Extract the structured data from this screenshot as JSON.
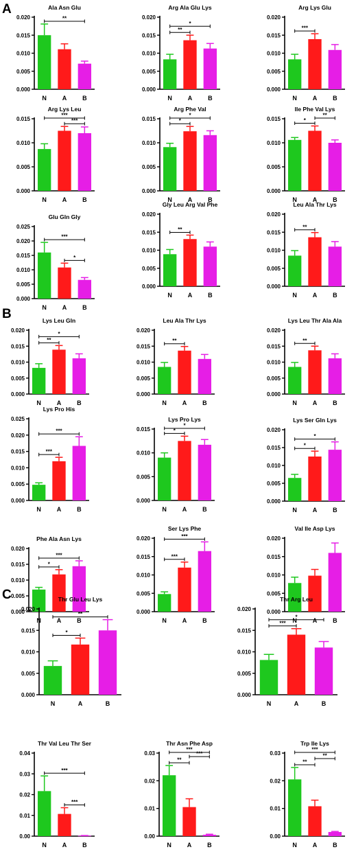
{
  "figure": {
    "sections": [
      "A",
      "B",
      "C"
    ]
  },
  "colors": {
    "N": "#1ec81e",
    "A": "#ff1a1a",
    "B": "#e61ee6"
  },
  "chart_data": [
    {
      "type": "bar",
      "section": "A",
      "title": "Ala Asn Glu",
      "categories": [
        "N",
        "A",
        "B"
      ],
      "values": [
        0.015,
        0.0111,
        0.0071
      ],
      "errors": [
        0.0031,
        0.0015,
        0.0007
      ],
      "ylim": [
        0,
        0.02
      ],
      "yticks": [
        "0.000",
        "0.005",
        "0.010",
        "0.015",
        "0.020"
      ],
      "significance": [
        {
          "from": "N",
          "to": "B",
          "label": "**"
        }
      ]
    },
    {
      "type": "bar",
      "section": "A",
      "title": "Arg Ala Glu Lys",
      "categories": [
        "N",
        "A",
        "B"
      ],
      "values": [
        0.0083,
        0.0136,
        0.0113
      ],
      "errors": [
        0.0014,
        0.0014,
        0.0014
      ],
      "ylim": [
        0,
        0.02
      ],
      "yticks": [
        "0.000",
        "0.005",
        "0.010",
        "0.015",
        "0.020"
      ],
      "significance": [
        {
          "from": "N",
          "to": "B",
          "label": "*"
        },
        {
          "from": "N",
          "to": "A",
          "label": "**"
        }
      ]
    },
    {
      "type": "bar",
      "section": "A",
      "title": "Arg Lys Glu",
      "categories": [
        "N",
        "A",
        "B"
      ],
      "values": [
        0.0083,
        0.0139,
        0.0109
      ],
      "errors": [
        0.0014,
        0.0015,
        0.0015
      ],
      "ylim": [
        0,
        0.02
      ],
      "yticks": [
        "0.000",
        "0.005",
        "0.010",
        "0.015",
        "0.020"
      ],
      "significance": [
        {
          "from": "N",
          "to": "A",
          "label": "***"
        }
      ]
    },
    {
      "type": "bar",
      "section": "A",
      "title": "Arg Lys Leu",
      "categories": [
        "N",
        "A",
        "B"
      ],
      "values": [
        0.0087,
        0.0125,
        0.012
      ],
      "errors": [
        0.0011,
        0.0009,
        0.0013
      ],
      "ylim": [
        0,
        0.015
      ],
      "yticks": [
        "0.000",
        "0.005",
        "0.010",
        "0.015"
      ],
      "significance": [
        {
          "from": "N",
          "to": "B",
          "label": "***"
        },
        {
          "from": "A",
          "to": "B",
          "label": "***"
        }
      ]
    },
    {
      "type": "bar",
      "section": "A",
      "title": "Arg Phe Val",
      "categories": [
        "N",
        "A",
        "B"
      ],
      "values": [
        0.0091,
        0.0124,
        0.0116
      ],
      "errors": [
        0.0008,
        0.001,
        0.0009
      ],
      "ylim": [
        0,
        0.015
      ],
      "yticks": [
        "0.000",
        "0.005",
        "0.010",
        "0.015"
      ],
      "significance": [
        {
          "from": "N",
          "to": "B",
          "label": "*"
        },
        {
          "from": "N",
          "to": "A",
          "label": "*"
        }
      ]
    },
    {
      "type": "bar",
      "section": "A",
      "title": "Ile Phe Val Lys",
      "categories": [
        "N",
        "A",
        "B"
      ],
      "values": [
        0.0106,
        0.0125,
        0.01
      ],
      "errors": [
        0.0005,
        0.001,
        0.0006
      ],
      "ylim": [
        0,
        0.015
      ],
      "yticks": [
        "0.000",
        "0.005",
        "0.010",
        "0.015"
      ],
      "significance": [
        {
          "from": "N",
          "to": "A",
          "label": "*"
        },
        {
          "from": "A",
          "to": "B",
          "label": "**"
        }
      ]
    },
    {
      "type": "bar",
      "section": "A",
      "title": "Glu Gln Gly",
      "categories": [
        "N",
        "A",
        "B"
      ],
      "values": [
        0.016,
        0.0108,
        0.0065
      ],
      "errors": [
        0.0035,
        0.0015,
        0.0008
      ],
      "ylim": [
        0,
        0.025
      ],
      "yticks": [
        "0.000",
        "0.005",
        "0.010",
        "0.015",
        "0.020",
        "0.025"
      ],
      "significance": [
        {
          "from": "N",
          "to": "B",
          "label": "***"
        },
        {
          "from": "A",
          "to": "B",
          "label": "*"
        }
      ]
    },
    {
      "type": "bar",
      "section": "A",
      "title": "Gly Leu Arg Val Phe",
      "categories": [
        "N",
        "A",
        "B"
      ],
      "values": [
        0.0089,
        0.0131,
        0.011
      ],
      "errors": [
        0.0013,
        0.0011,
        0.0013
      ],
      "ylim": [
        0,
        0.02
      ],
      "yticks": [
        "0.000",
        "0.005",
        "0.010",
        "0.015",
        "0.020"
      ],
      "significance": [
        {
          "from": "N",
          "to": "A",
          "label": "**"
        }
      ]
    },
    {
      "type": "bar",
      "section": "A",
      "title": "Leu Ala Thr Lys",
      "categories": [
        "N",
        "A",
        "B"
      ],
      "values": [
        0.0085,
        0.0136,
        0.011
      ],
      "errors": [
        0.0014,
        0.0013,
        0.0014
      ],
      "ylim": [
        0,
        0.02
      ],
      "yticks": [
        "0.000",
        "0.005",
        "0.010",
        "0.015",
        "0.020"
      ],
      "significance": [
        {
          "from": "N",
          "to": "A",
          "label": "**"
        }
      ]
    },
    {
      "type": "bar",
      "section": "B",
      "title": "Lys Leu Gln",
      "categories": [
        "N",
        "A",
        "B"
      ],
      "values": [
        0.0082,
        0.0139,
        0.0112
      ],
      "errors": [
        0.0013,
        0.0013,
        0.0014
      ],
      "ylim": [
        0,
        0.02
      ],
      "yticks": [
        "0.000",
        "0.005",
        "0.010",
        "0.015",
        "0.020"
      ],
      "significance": [
        {
          "from": "N",
          "to": "B",
          "label": "*"
        },
        {
          "from": "N",
          "to": "A",
          "label": "**"
        }
      ]
    },
    {
      "type": "bar",
      "section": "B",
      "title": "Leu Ala Thr Lys",
      "categories": [
        "N",
        "A",
        "B"
      ],
      "values": [
        0.0085,
        0.0136,
        0.011
      ],
      "errors": [
        0.0014,
        0.0013,
        0.0014
      ],
      "ylim": [
        0,
        0.02
      ],
      "yticks": [
        "0.000",
        "0.005",
        "0.010",
        "0.015",
        "0.020"
      ],
      "significance": [
        {
          "from": "N",
          "to": "A",
          "label": "**"
        }
      ]
    },
    {
      "type": "bar",
      "section": "B",
      "title": "Lys Leu Thr Ala Ala",
      "categories": [
        "N",
        "A",
        "B"
      ],
      "values": [
        0.0085,
        0.0137,
        0.0112
      ],
      "errors": [
        0.0014,
        0.0013,
        0.0014
      ],
      "ylim": [
        0,
        0.02
      ],
      "yticks": [
        "0.000",
        "0.005",
        "0.010",
        "0.015",
        "0.020"
      ],
      "significance": [
        {
          "from": "N",
          "to": "A",
          "label": "**"
        }
      ]
    },
    {
      "type": "bar",
      "section": "B",
      "title": "Lys Pro His",
      "categories": [
        "N",
        "A",
        "B"
      ],
      "values": [
        0.0048,
        0.012,
        0.0167
      ],
      "errors": [
        0.0006,
        0.0012,
        0.0028
      ],
      "ylim": [
        0,
        0.025
      ],
      "yticks": [
        "0.000",
        "0.005",
        "0.010",
        "0.015",
        "0.020",
        "0.025"
      ],
      "significance": [
        {
          "from": "N",
          "to": "B",
          "label": "***"
        },
        {
          "from": "N",
          "to": "A",
          "label": "***"
        }
      ]
    },
    {
      "type": "bar",
      "section": "B",
      "title": "Lys Pro Lys",
      "categories": [
        "N",
        "A",
        "B"
      ],
      "values": [
        0.009,
        0.0125,
        0.0117
      ],
      "errors": [
        0.001,
        0.001,
        0.0011
      ],
      "ylim": [
        0,
        0.015
      ],
      "yticks": [
        "0.000",
        "0.005",
        "0.010",
        "0.015"
      ],
      "significance": [
        {
          "from": "N",
          "to": "B",
          "label": "*"
        },
        {
          "from": "N",
          "to": "A",
          "label": "*"
        }
      ]
    },
    {
      "type": "bar",
      "section": "B",
      "title": "Lys Ser Gln Lys",
      "categories": [
        "N",
        "A",
        "B"
      ],
      "values": [
        0.0065,
        0.0125,
        0.0144
      ],
      "errors": [
        0.001,
        0.0015,
        0.0022
      ],
      "ylim": [
        0,
        0.02
      ],
      "yticks": [
        "0.000",
        "0.005",
        "0.010",
        "0.015",
        "0.020"
      ],
      "significance": [
        {
          "from": "N",
          "to": "B",
          "label": "*"
        },
        {
          "from": "N",
          "to": "A",
          "label": "*"
        }
      ]
    },
    {
      "type": "bar",
      "section": "B",
      "title": "Phe Ala Asn Lys",
      "categories": [
        "N",
        "A",
        "B"
      ],
      "values": [
        0.007,
        0.0118,
        0.0144
      ],
      "errors": [
        0.0007,
        0.0015,
        0.0017
      ],
      "ylim": [
        0,
        0.02
      ],
      "yticks": [
        "0.000",
        "0.005",
        "0.010",
        "0.015",
        "0.020"
      ],
      "significance": [
        {
          "from": "N",
          "to": "B",
          "label": "***"
        },
        {
          "from": "N",
          "to": "A",
          "label": "*"
        }
      ]
    },
    {
      "type": "bar",
      "section": "B",
      "title": "Ser Lys Phe",
      "categories": [
        "N",
        "A",
        "B"
      ],
      "values": [
        0.0048,
        0.012,
        0.0165
      ],
      "errors": [
        0.0006,
        0.0015,
        0.0025
      ],
      "ylim": [
        0,
        0.02
      ],
      "yticks": [
        "0.000",
        "0.005",
        "0.010",
        "0.015",
        "0.020"
      ],
      "significance": [
        {
          "from": "N",
          "to": "B",
          "label": "***"
        },
        {
          "from": "N",
          "to": "A",
          "label": "***"
        }
      ]
    },
    {
      "type": "bar",
      "section": "B",
      "title": "Val Ile Asp Lys",
      "categories": [
        "N",
        "A",
        "B"
      ],
      "values": [
        0.0078,
        0.0098,
        0.016
      ],
      "errors": [
        0.0016,
        0.0017,
        0.0027
      ],
      "ylim": [
        0,
        0.02
      ],
      "yticks": [
        "0.000",
        "0.005",
        "0.010",
        "0.015",
        "0.020"
      ],
      "significance": []
    },
    {
      "type": "bar",
      "section": "C",
      "title": "Thr Glu Leu Lys",
      "categories": [
        "N",
        "A",
        "B"
      ],
      "values": [
        0.0067,
        0.0117,
        0.015
      ],
      "errors": [
        0.0012,
        0.0015,
        0.0025
      ],
      "ylim": [
        0,
        0.02
      ],
      "yticks": [
        "0.000",
        "0.005",
        "0.010",
        "0.015",
        "0.020"
      ],
      "significance": [
        {
          "from": "N",
          "to": "B",
          "label": "**"
        },
        {
          "from": "N",
          "to": "A",
          "label": "*"
        }
      ]
    },
    {
      "type": "bar",
      "section": "C",
      "title": "Thr Arg Leu",
      "categories": [
        "N",
        "A",
        "B"
      ],
      "values": [
        0.0081,
        0.014,
        0.011
      ],
      "errors": [
        0.0013,
        0.0014,
        0.0014
      ],
      "ylim": [
        0,
        0.02
      ],
      "yticks": [
        "0.000",
        "0.005",
        "0.010",
        "0.015",
        "0.020"
      ],
      "significance": [
        {
          "from": "N",
          "to": "B",
          "label": "*"
        },
        {
          "from": "N",
          "to": "A",
          "label": "***"
        }
      ]
    },
    {
      "type": "bar",
      "section": "C",
      "title": "Thr Val Leu Thr Ser",
      "categories": [
        "N",
        "A",
        "B"
      ],
      "values": [
        0.0217,
        0.0107,
        0.0002
      ],
      "errors": [
        0.0073,
        0.003,
        0.0001
      ],
      "ylim": [
        0,
        0.04
      ],
      "yticks": [
        "0.00",
        "0.01",
        "0.02",
        "0.03",
        "0.04"
      ],
      "significance": [
        {
          "from": "N",
          "to": "B",
          "label": "***"
        },
        {
          "from": "A",
          "to": "B",
          "label": "***"
        }
      ]
    },
    {
      "type": "bar",
      "section": "C",
      "title": "Thr Asn Phe Asp",
      "categories": [
        "N",
        "A",
        "B"
      ],
      "values": [
        0.022,
        0.0105,
        0.0005
      ],
      "errors": [
        0.0035,
        0.003,
        0.0002
      ],
      "ylim": [
        0,
        0.03
      ],
      "yticks": [
        "0.00",
        "0.01",
        "0.02",
        "0.03"
      ],
      "significance": [
        {
          "from": "N",
          "to": "B",
          "label": "***"
        },
        {
          "from": "N",
          "to": "A",
          "label": "**"
        },
        {
          "from": "A",
          "to": "B",
          "label": "***"
        }
      ]
    },
    {
      "type": "bar",
      "section": "C",
      "title": "Trp Ile Lys",
      "categories": [
        "N",
        "A",
        "B"
      ],
      "values": [
        0.0205,
        0.0108,
        0.0015
      ],
      "errors": [
        0.0043,
        0.0022,
        0.0002
      ],
      "ylim": [
        0,
        0.03
      ],
      "yticks": [
        "0.00",
        "0.01",
        "0.02",
        "0.03"
      ],
      "significance": [
        {
          "from": "N",
          "to": "B",
          "label": "***"
        },
        {
          "from": "N",
          "to": "A",
          "label": "**"
        },
        {
          "from": "A",
          "to": "B",
          "label": "**"
        }
      ]
    }
  ]
}
